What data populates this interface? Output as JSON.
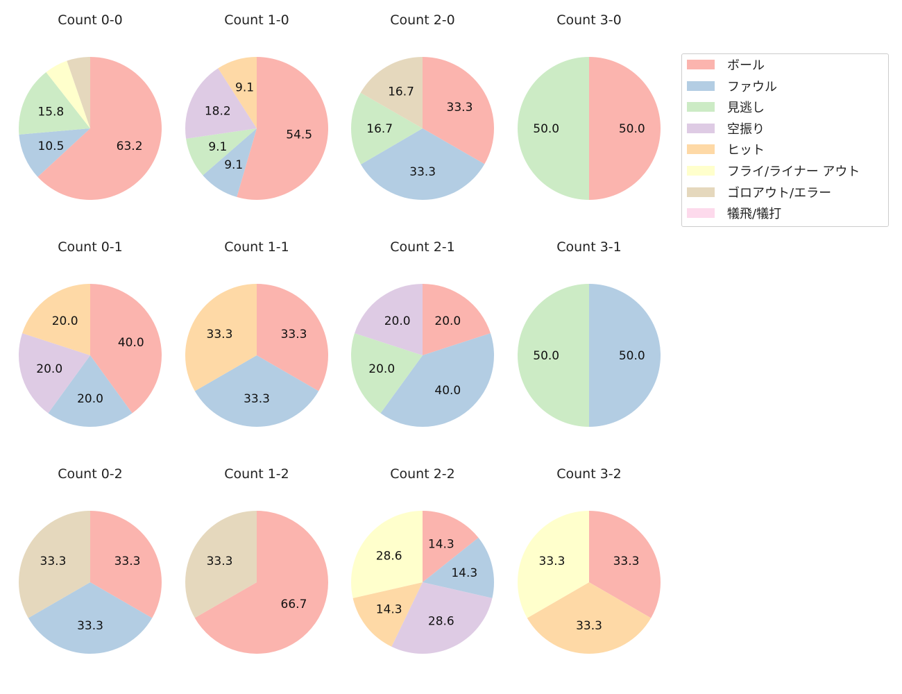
{
  "chart_data": {
    "type": "pie",
    "categories": [
      "ボール",
      "ファウル",
      "見逃し",
      "空振り",
      "ヒット",
      "フライ/ライナー アウト",
      "ゴロアウト/エラー",
      "犠飛/犠打"
    ],
    "colors": [
      "#fbb4ae",
      "#b3cde3",
      "#ccebc5",
      "#decbe4",
      "#fed9a6",
      "#ffffcc",
      "#e5d8bd",
      "#fddaec"
    ],
    "legend_position": "right",
    "start": "top, clockwise",
    "charts": [
      {
        "title": "Count 0-0",
        "values": [
          63.2,
          10.5,
          15.8,
          0,
          0,
          5.3,
          5.3,
          0
        ]
      },
      {
        "title": "Count 1-0",
        "values": [
          54.5,
          9.1,
          9.1,
          18.2,
          9.1,
          0,
          0,
          0
        ]
      },
      {
        "title": "Count 2-0",
        "values": [
          33.3,
          33.3,
          16.7,
          0,
          0,
          0,
          16.7,
          0
        ]
      },
      {
        "title": "Count 3-0",
        "values": [
          50.0,
          0,
          50.0,
          0,
          0,
          0,
          0,
          0
        ]
      },
      {
        "title": "Count 0-1",
        "values": [
          40.0,
          20.0,
          0,
          20.0,
          20.0,
          0,
          0,
          0
        ]
      },
      {
        "title": "Count 1-1",
        "values": [
          33.3,
          33.3,
          0,
          0,
          33.3,
          0,
          0,
          0
        ]
      },
      {
        "title": "Count 2-1",
        "values": [
          20.0,
          40.0,
          20.0,
          20.0,
          0,
          0,
          0,
          0
        ]
      },
      {
        "title": "Count 3-1",
        "values": [
          0,
          50.0,
          50.0,
          0,
          0,
          0,
          0,
          0
        ]
      },
      {
        "title": "Count 0-2",
        "values": [
          33.3,
          33.3,
          0,
          0,
          0,
          0,
          33.3,
          0
        ]
      },
      {
        "title": "Count 1-2",
        "values": [
          66.7,
          0,
          0,
          0,
          0,
          0,
          33.3,
          0
        ]
      },
      {
        "title": "Count 2-2",
        "values": [
          14.3,
          14.3,
          0,
          28.6,
          14.3,
          28.6,
          0,
          0
        ]
      },
      {
        "title": "Count 3-2",
        "values": [
          33.3,
          0,
          0,
          0,
          33.3,
          33.3,
          0,
          0
        ]
      }
    ]
  }
}
